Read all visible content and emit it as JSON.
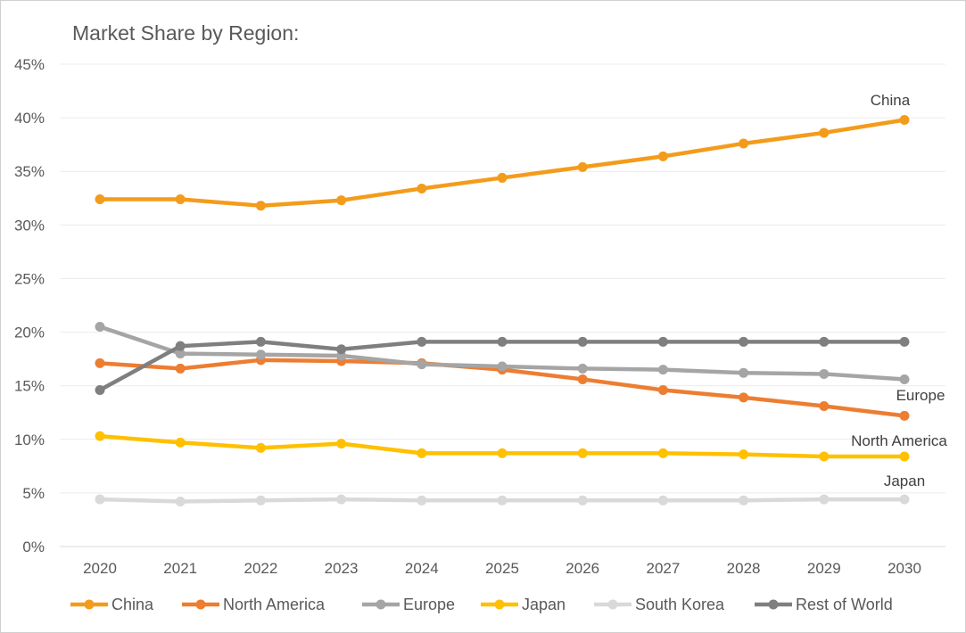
{
  "chart_data": {
    "type": "line",
    "title": "Market Share by Region:",
    "xlabel": "",
    "ylabel": "",
    "x": [
      2020,
      2021,
      2022,
      2023,
      2024,
      2025,
      2026,
      2027,
      2028,
      2029,
      2030
    ],
    "ylim": [
      0,
      45
    ],
    "yticks": [
      "0%",
      "5%",
      "10%",
      "15%",
      "20%",
      "25%",
      "30%",
      "35%",
      "40%",
      "45%"
    ],
    "grid": true,
    "legend": "bottom",
    "series": [
      {
        "name": "China",
        "color": "#F39C1B",
        "end_label": "China",
        "values": [
          32.4,
          32.4,
          31.8,
          32.3,
          33.4,
          34.4,
          35.4,
          36.4,
          37.6,
          38.6,
          39.8
        ]
      },
      {
        "name": "North America",
        "color": "#ED7D31",
        "end_label": "North America",
        "values": [
          17.1,
          16.6,
          17.4,
          17.3,
          17.1,
          16.5,
          15.6,
          14.6,
          13.9,
          13.1,
          12.2
        ]
      },
      {
        "name": "Europe",
        "color": "#A5A5A5",
        "end_label": "Europe",
        "values": [
          20.5,
          18.0,
          17.9,
          17.8,
          17.0,
          16.8,
          16.6,
          16.5,
          16.2,
          16.1,
          15.6
        ]
      },
      {
        "name": "Japan",
        "color": "#FFC000",
        "end_label": "Japan",
        "values": [
          10.3,
          9.7,
          9.2,
          9.6,
          8.7,
          8.7,
          8.7,
          8.7,
          8.6,
          8.4,
          8.4
        ]
      },
      {
        "name": "South Korea",
        "color": "#D9D9D9",
        "end_label": "",
        "values": [
          4.4,
          4.2,
          4.3,
          4.4,
          4.3,
          4.3,
          4.3,
          4.3,
          4.3,
          4.4,
          4.4
        ]
      },
      {
        "name": "Rest of World",
        "color": "#7F7F7F",
        "end_label": "",
        "values": [
          14.6,
          18.7,
          19.1,
          18.4,
          19.1,
          19.1,
          19.1,
          19.1,
          19.1,
          19.1,
          19.1
        ]
      }
    ]
  }
}
